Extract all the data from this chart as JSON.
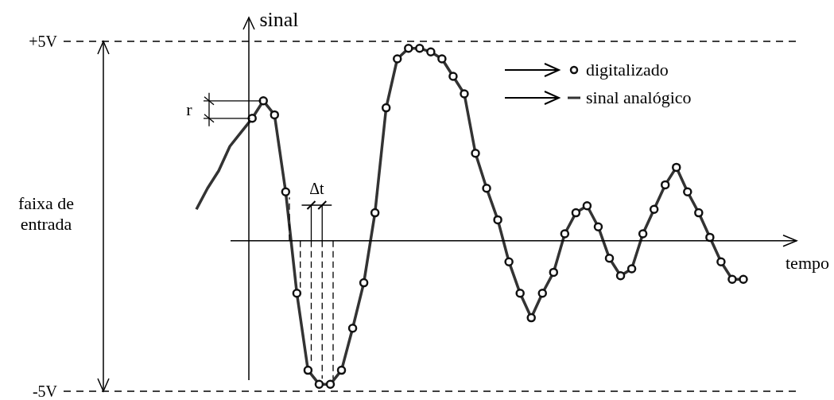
{
  "chart_data": {
    "type": "line",
    "ylabel": "sinal",
    "xlabel": "tempo",
    "annotations": [
      "faixa de entrada",
      "r",
      "Δt"
    ],
    "categories": [
      null,
      null,
      null,
      null,
      null,
      null,
      null,
      null,
      null,
      null,
      null,
      null,
      null,
      null,
      null,
      null,
      null,
      null,
      null,
      null,
      null,
      null,
      null,
      null,
      null,
      null,
      null,
      null,
      null,
      null,
      null,
      null,
      null,
      null,
      null,
      null,
      null,
      null,
      null,
      null,
      null,
      null,
      null,
      null,
      null,
      null,
      null,
      null,
      null,
      null
    ],
    "ylim": [
      -5,
      5
    ],
    "yticks": [
      {
        "value": 5,
        "label": "+5V"
      },
      {
        "value": -5,
        "label": "-5V"
      }
    ],
    "tick_labels": "y",
    "legend": "top right",
    "ref_lines": [
      {
        "axis": "y",
        "value": 5,
        "line_style": "dashed"
      },
      {
        "axis": "y",
        "value": -5,
        "line_style": "dashed"
      },
      {
        "axis": "y",
        "value": -0.7,
        "line_style": "solid"
      }
    ],
    "series": [
      {
        "name": "digitalizado",
        "type": "scatter",
        "color": "#111111",
        "marker": "circle",
        "values": [
          null,
          null,
          null,
          null,
          null,
          2.8,
          3.3,
          2.9,
          0.7,
          -2.2,
          -4.4,
          -4.8,
          -4.8,
          -4.4,
          -3.2,
          -1.9,
          0.1,
          3.1,
          4.5,
          4.8,
          4.8,
          4.7,
          4.5,
          4.0,
          3.5,
          1.8,
          0.8,
          -0.1,
          -1.3,
          -2.2,
          -2.9,
          -2.2,
          -1.6,
          -0.5,
          0.1,
          0.3,
          -0.3,
          -1.2,
          -1.7,
          -1.5,
          -0.5,
          0.2,
          0.9,
          1.4,
          0.7,
          0.1,
          -0.6,
          -1.3,
          -1.8,
          -1.8
        ]
      },
      {
        "name": "sinal analógico",
        "color": "#333333",
        "line_style": "solid",
        "values": [
          0.2,
          0.8,
          1.3,
          2.0,
          2.4,
          2.8,
          3.3,
          2.9,
          0.7,
          -2.2,
          -4.4,
          -4.8,
          -4.8,
          -4.4,
          -3.2,
          -1.9,
          0.1,
          3.1,
          4.5,
          4.8,
          4.8,
          4.7,
          4.5,
          4.0,
          3.5,
          1.8,
          0.8,
          -0.1,
          -1.3,
          -2.2,
          -2.9,
          -2.2,
          -1.6,
          -0.5,
          0.1,
          0.3,
          -0.3,
          -1.2,
          -1.7,
          -1.5,
          -0.5,
          0.2,
          0.9,
          1.4,
          0.7,
          0.1,
          -0.6,
          -1.3,
          -1.8,
          -1.8
        ]
      }
    ]
  }
}
